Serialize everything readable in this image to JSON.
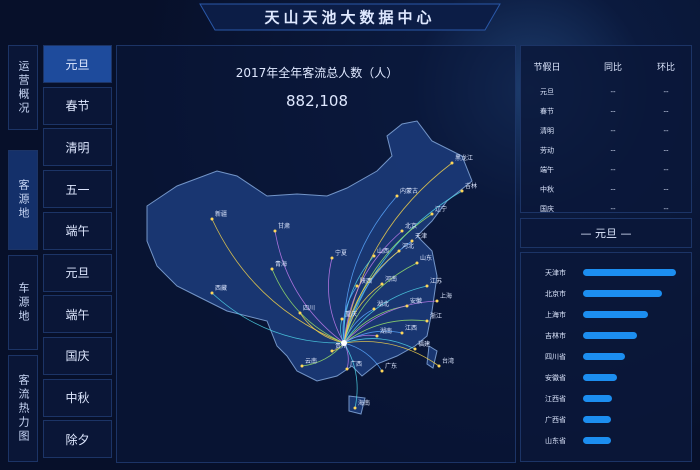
{
  "header": {
    "title": "天山天池大数据中心"
  },
  "nav": [
    "运营概况",
    "客源地",
    "车源地",
    "客流热力图"
  ],
  "holidays": [
    "元旦",
    "春节",
    "清明",
    "五一",
    "端午",
    "元旦",
    "端午",
    "国庆",
    "中秋",
    "除夕"
  ],
  "map": {
    "title": "2017年全年客流总人数（人）",
    "total": "882,108",
    "provinces": [
      "新疆",
      "西藏",
      "青海",
      "甘肃",
      "内蒙古",
      "黑龙江",
      "吉林",
      "辽宁",
      "北京",
      "天津",
      "河北",
      "山西",
      "山东",
      "宁夏",
      "陕西",
      "河南",
      "江苏",
      "安徽",
      "上海",
      "湖北",
      "四川",
      "重庆",
      "浙江",
      "湖南",
      "江西",
      "贵州",
      "福建",
      "云南",
      "广西",
      "广东",
      "台湾",
      "海南"
    ]
  },
  "table": {
    "headers": [
      "节假日",
      "同比",
      "环比"
    ],
    "rows": [
      [
        "元旦",
        "--",
        "--"
      ],
      [
        "春节",
        "--",
        "--"
      ],
      [
        "清明",
        "--",
        "--"
      ],
      [
        "劳动",
        "--",
        "--"
      ],
      [
        "端午",
        "--",
        "--"
      ],
      [
        "中秋",
        "--",
        "--"
      ],
      [
        "国庆",
        "--",
        "--"
      ]
    ]
  },
  "selected": "— 元旦 —",
  "ranking": {
    "categories": [
      "天津市",
      "北京市",
      "上海市",
      "吉林市",
      "四川省",
      "安徽省",
      "江西省",
      "广西省",
      "山东省"
    ],
    "values": [
      93,
      79,
      65,
      54,
      42,
      34,
      29,
      28,
      28
    ]
  }
}
